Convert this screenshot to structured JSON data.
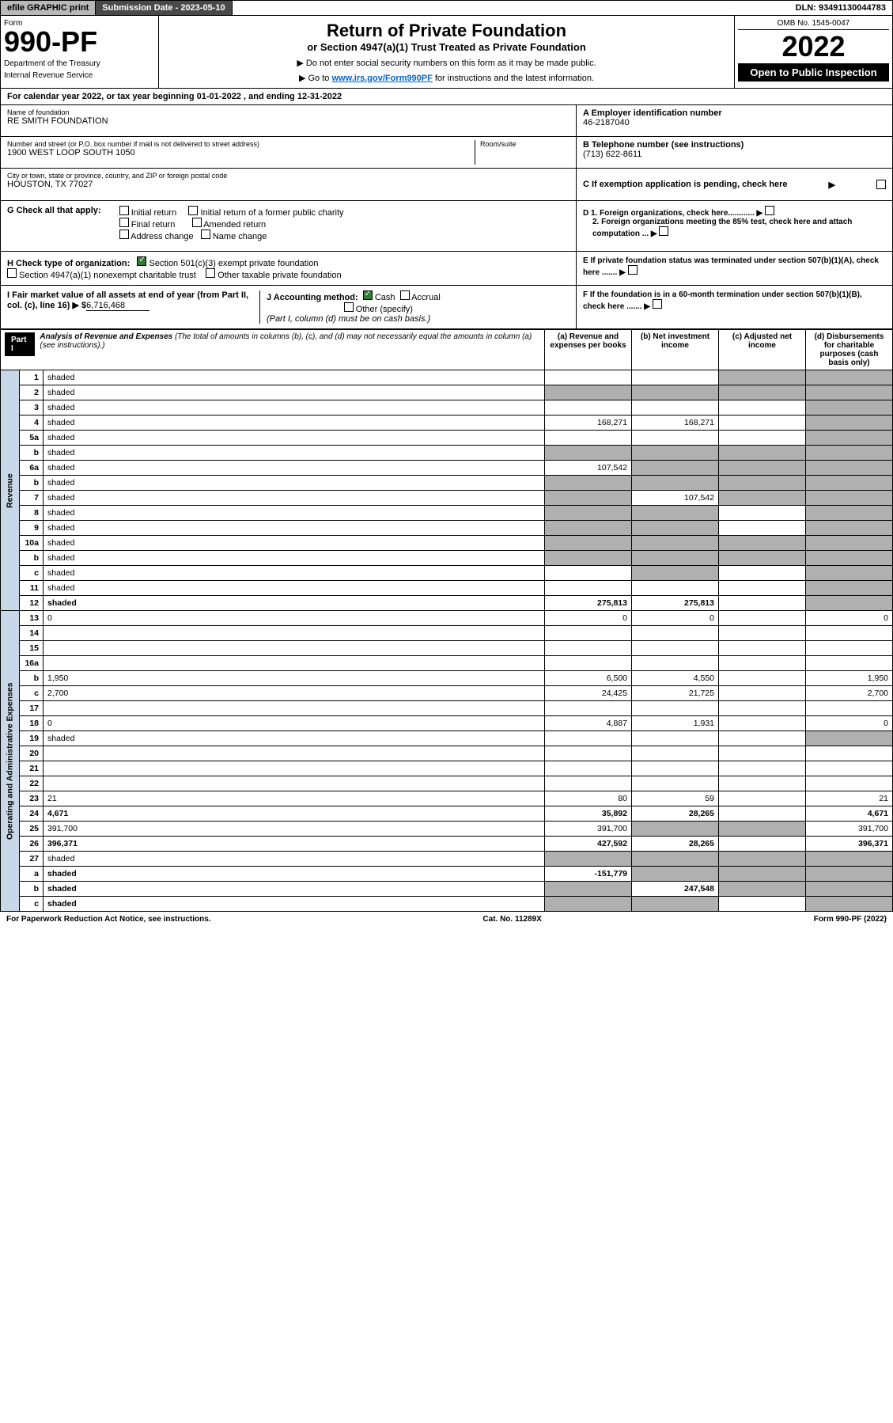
{
  "topbar": {
    "efile": "efile GRAPHIC print",
    "subdate_label": "Submission Date - 2023-05-10",
    "dln": "DLN: 93491130044783"
  },
  "header": {
    "form_label": "Form",
    "form_number": "990-PF",
    "dept1": "Department of the Treasury",
    "dept2": "Internal Revenue Service",
    "title": "Return of Private Foundation",
    "subtitle": "or Section 4947(a)(1) Trust Treated as Private Foundation",
    "instr1": "▶ Do not enter social security numbers on this form as it may be made public.",
    "instr2_pre": "▶ Go to ",
    "instr2_link": "www.irs.gov/Form990PF",
    "instr2_post": " for instructions and the latest information.",
    "omb": "OMB No. 1545-0047",
    "year": "2022",
    "open_public": "Open to Public Inspection"
  },
  "cal_year": {
    "text_pre": "For calendar year 2022, or tax year beginning ",
    "begin": "01-01-2022",
    "text_mid": " , and ending ",
    "end": "12-31-2022"
  },
  "foundation": {
    "name_label": "Name of foundation",
    "name": "RE SMITH FOUNDATION",
    "addr_label": "Number and street (or P.O. box number if mail is not delivered to street address)",
    "addr": "1900 WEST LOOP SOUTH 1050",
    "room_label": "Room/suite",
    "city_label": "City or town, state or province, country, and ZIP or foreign postal code",
    "city": "HOUSTON, TX  77027",
    "ein_label": "A Employer identification number",
    "ein": "46-2187040",
    "phone_label": "B Telephone number (see instructions)",
    "phone": "(713) 622-8611",
    "c_label": "C If exemption application is pending, check here"
  },
  "checks": {
    "g_label": "G Check all that apply:",
    "initial": "Initial return",
    "initial_former": "Initial return of a former public charity",
    "final": "Final return",
    "amended": "Amended return",
    "address": "Address change",
    "name_change": "Name change",
    "h_label": "H Check type of organization:",
    "h_501c3": "Section 501(c)(3) exempt private foundation",
    "h_4947": "Section 4947(a)(1) nonexempt charitable trust",
    "h_other_taxable": "Other taxable private foundation",
    "i_label": "I Fair market value of all assets at end of year (from Part II, col. (c), line 16) ▶ $",
    "i_value": "6,716,468",
    "j_label": "J Accounting method:",
    "j_cash": "Cash",
    "j_accrual": "Accrual",
    "j_other": "Other (specify)",
    "j_note": "(Part I, column (d) must be on cash basis.)",
    "d1": "D 1. Foreign organizations, check here............",
    "d2": "2. Foreign organizations meeting the 85% test, check here and attach computation ...",
    "e_label": "E  If private foundation status was terminated under section 507(b)(1)(A), check here .......",
    "f_label": "F  If the foundation is in a 60-month termination under section 507(b)(1)(B), check here ......."
  },
  "part1": {
    "label": "Part I",
    "title": "Analysis of Revenue and Expenses",
    "title_note": "(The total of amounts in columns (b), (c), and (d) may not necessarily equal the amounts in column (a) (see instructions).)",
    "col_a": "(a)   Revenue and expenses per books",
    "col_b": "(b)   Net investment income",
    "col_c": "(c)   Adjusted net income",
    "col_d": "(d)   Disbursements for charitable purposes (cash basis only)"
  },
  "side_labels": {
    "revenue": "Revenue",
    "expenses": "Operating and Administrative Expenses"
  },
  "rows": [
    {
      "n": "1",
      "d": "shaded",
      "a": "",
      "b": "",
      "c": "shaded"
    },
    {
      "n": "2",
      "d": "shaded",
      "a": "shaded",
      "b": "shaded",
      "c": "shaded"
    },
    {
      "n": "3",
      "d": "shaded",
      "a": "",
      "b": "",
      "c": ""
    },
    {
      "n": "4",
      "d": "shaded",
      "a": "168,271",
      "b": "168,271",
      "c": ""
    },
    {
      "n": "5a",
      "d": "shaded",
      "a": "",
      "b": "",
      "c": ""
    },
    {
      "n": "b",
      "d": "shaded",
      "a": "shaded",
      "b": "shaded",
      "c": "shaded"
    },
    {
      "n": "6a",
      "d": "shaded",
      "a": "107,542",
      "b": "shaded",
      "c": "shaded"
    },
    {
      "n": "b",
      "d": "shaded",
      "a": "shaded",
      "b": "shaded",
      "c": "shaded"
    },
    {
      "n": "7",
      "d": "shaded",
      "a": "shaded",
      "b": "107,542",
      "c": "shaded"
    },
    {
      "n": "8",
      "d": "shaded",
      "a": "shaded",
      "b": "shaded",
      "c": ""
    },
    {
      "n": "9",
      "d": "shaded",
      "a": "shaded",
      "b": "shaded",
      "c": ""
    },
    {
      "n": "10a",
      "d": "shaded",
      "a": "shaded",
      "b": "shaded",
      "c": "shaded"
    },
    {
      "n": "b",
      "d": "shaded",
      "a": "shaded",
      "b": "shaded",
      "c": "shaded"
    },
    {
      "n": "c",
      "d": "shaded",
      "a": "",
      "b": "shaded",
      "c": ""
    },
    {
      "n": "11",
      "d": "shaded",
      "a": "",
      "b": "",
      "c": ""
    },
    {
      "n": "12",
      "d": "shaded",
      "a": "275,813",
      "b": "275,813",
      "c": "",
      "bold": true
    },
    {
      "n": "13",
      "d": "0",
      "a": "0",
      "b": "0",
      "c": ""
    },
    {
      "n": "14",
      "d": "",
      "a": "",
      "b": "",
      "c": ""
    },
    {
      "n": "15",
      "d": "",
      "a": "",
      "b": "",
      "c": ""
    },
    {
      "n": "16a",
      "d": "",
      "a": "",
      "b": "",
      "c": ""
    },
    {
      "n": "b",
      "d": "1,950",
      "a": "6,500",
      "b": "4,550",
      "c": ""
    },
    {
      "n": "c",
      "d": "2,700",
      "a": "24,425",
      "b": "21,725",
      "c": ""
    },
    {
      "n": "17",
      "d": "",
      "a": "",
      "b": "",
      "c": ""
    },
    {
      "n": "18",
      "d": "0",
      "a": "4,887",
      "b": "1,931",
      "c": ""
    },
    {
      "n": "19",
      "d": "shaded",
      "a": "",
      "b": "",
      "c": ""
    },
    {
      "n": "20",
      "d": "",
      "a": "",
      "b": "",
      "c": ""
    },
    {
      "n": "21",
      "d": "",
      "a": "",
      "b": "",
      "c": ""
    },
    {
      "n": "22",
      "d": "",
      "a": "",
      "b": "",
      "c": ""
    },
    {
      "n": "23",
      "d": "21",
      "a": "80",
      "b": "59",
      "c": ""
    },
    {
      "n": "24",
      "d": "4,671",
      "a": "35,892",
      "b": "28,265",
      "c": "",
      "bold": true
    },
    {
      "n": "25",
      "d": "391,700",
      "a": "391,700",
      "b": "shaded",
      "c": "shaded"
    },
    {
      "n": "26",
      "d": "396,371",
      "a": "427,592",
      "b": "28,265",
      "c": "",
      "bold": true
    },
    {
      "n": "27",
      "d": "shaded",
      "a": "shaded",
      "b": "shaded",
      "c": "shaded"
    },
    {
      "n": "a",
      "d": "shaded",
      "a": "-151,779",
      "b": "shaded",
      "c": "shaded",
      "bold": true
    },
    {
      "n": "b",
      "d": "shaded",
      "a": "shaded",
      "b": "247,548",
      "c": "shaded",
      "bold": true
    },
    {
      "n": "c",
      "d": "shaded",
      "a": "shaded",
      "b": "shaded",
      "c": "",
      "bold": true
    }
  ],
  "footer": {
    "left": "For Paperwork Reduction Act Notice, see instructions.",
    "mid": "Cat. No. 11289X",
    "right": "Form 990-PF (2022)"
  }
}
